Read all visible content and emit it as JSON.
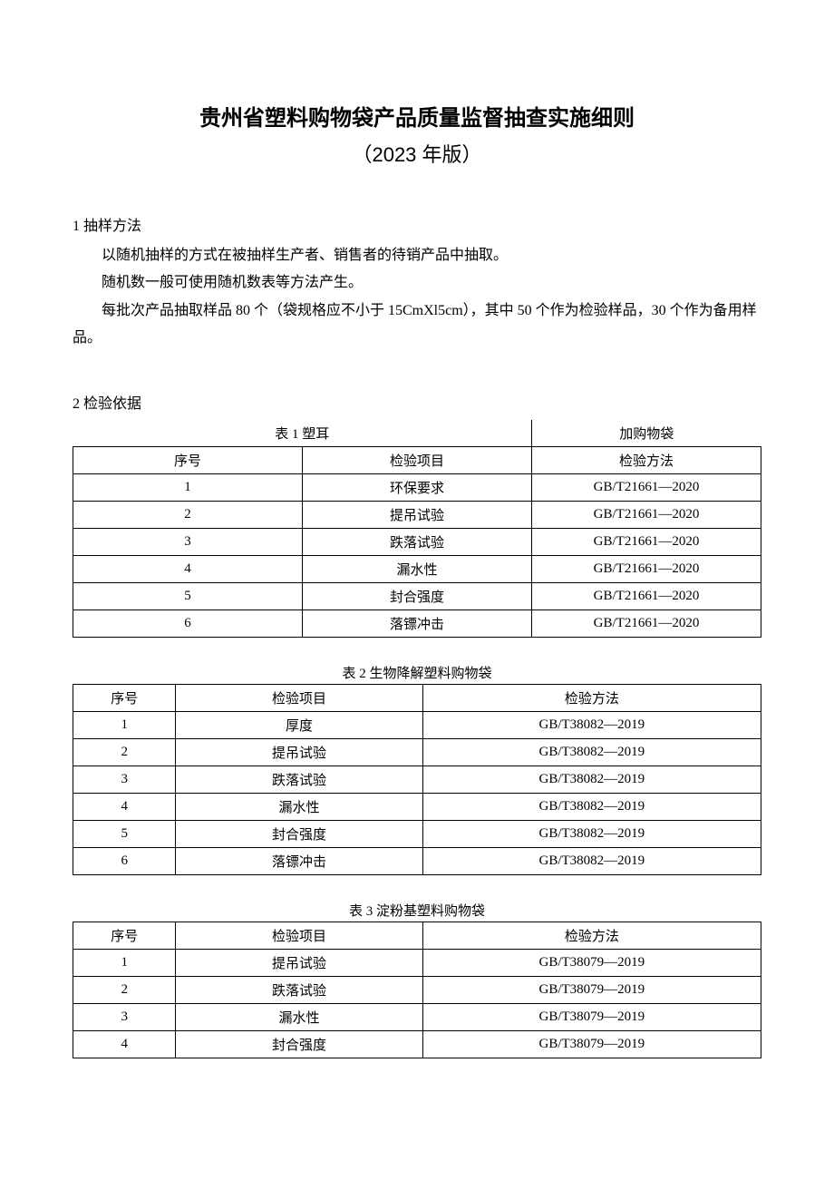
{
  "title": "贵州省塑料购物袋产品质量监督抽查实施细则",
  "subtitle": "（2023 年版）",
  "section1": {
    "heading": "1 抽样方法",
    "p1": "以随机抽样的方式在被抽样生产者、销售者的待销产品中抽取。",
    "p2": "随机数一般可使用随机数表等方法产生。",
    "p3": "每批次产品抽取样品 80 个（袋规格应不小于 15CmXl5cm），其中 50 个作为检验样品，30 个作为备用样品。"
  },
  "section2": {
    "heading": "2 检验依据"
  },
  "table1": {
    "caption_left": "表 1 塑耳",
    "caption_right": "加购物袋",
    "header": {
      "seq": "序号",
      "item": "检验项目",
      "method": "检验方法"
    },
    "rows": [
      {
        "seq": "1",
        "item": "环保要求",
        "method": "GB/T21661—2020"
      },
      {
        "seq": "2",
        "item": "提吊试验",
        "method": "GB/T21661—2020"
      },
      {
        "seq": "3",
        "item": "跌落试验",
        "method": "GB/T21661—2020"
      },
      {
        "seq": "4",
        "item": "漏水性",
        "method": "GB/T21661—2020"
      },
      {
        "seq": "5",
        "item": "封合强度",
        "method": "GB/T21661—2020"
      },
      {
        "seq": "6",
        "item": "落镖冲击",
        "method": "GB/T21661—2020"
      }
    ]
  },
  "table2": {
    "caption": "表 2 生物降解塑料购物袋",
    "header": {
      "seq": "序号",
      "item": "检验项目",
      "method": "检验方法"
    },
    "rows": [
      {
        "seq": "1",
        "item": "厚度",
        "method": "GB/T38082—2019"
      },
      {
        "seq": "2",
        "item": "提吊试验",
        "method": "GB/T38082—2019"
      },
      {
        "seq": "3",
        "item": "跌落试验",
        "method": "GB/T38082—2019"
      },
      {
        "seq": "4",
        "item": "漏水性",
        "method": "GB/T38082—2019"
      },
      {
        "seq": "5",
        "item": "封合强度",
        "method": "GB/T38082—2019"
      },
      {
        "seq": "6",
        "item": "落镖冲击",
        "method": "GB/T38082—2019"
      }
    ]
  },
  "table3": {
    "caption": "表 3 淀粉基塑料购物袋",
    "header": {
      "seq": "序号",
      "item": "检验项目",
      "method": "检验方法"
    },
    "rows": [
      {
        "seq": "1",
        "item": "提吊试验",
        "method": "GB/T38079—2019"
      },
      {
        "seq": "2",
        "item": "跌落试验",
        "method": "GB/T38079—2019"
      },
      {
        "seq": "3",
        "item": "漏水性",
        "method": "GB/T38079—2019"
      },
      {
        "seq": "4",
        "item": "封合强度",
        "method": "GB/T38079—2019"
      }
    ]
  }
}
